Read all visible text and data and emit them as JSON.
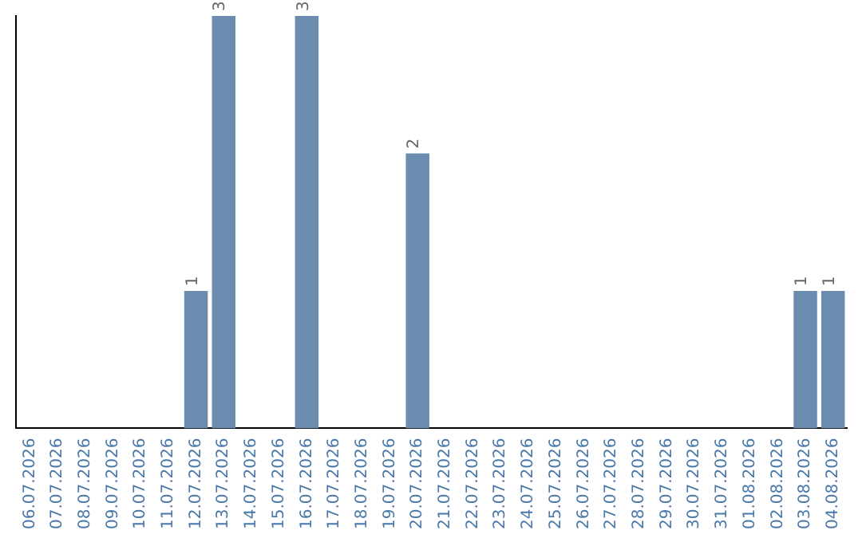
{
  "chart_data": {
    "type": "bar",
    "categories": [
      "06.07.2026",
      "07.07.2026",
      "08.07.2026",
      "09.07.2026",
      "10.07.2026",
      "11.07.2026",
      "12.07.2026",
      "13.07.2026",
      "14.07.2026",
      "15.07.2026",
      "16.07.2026",
      "17.07.2026",
      "18.07.2026",
      "19.07.2026",
      "20.07.2026",
      "21.07.2026",
      "22.07.2026",
      "23.07.2026",
      "24.07.2026",
      "25.07.2026",
      "26.07.2026",
      "27.07.2026",
      "28.07.2026",
      "29.07.2026",
      "30.07.2026",
      "31.07.2026",
      "01.08.2026",
      "02.08.2026",
      "03.08.2026",
      "04.08.2026"
    ],
    "values": [
      0,
      0,
      0,
      0,
      0,
      0,
      1,
      3,
      0,
      0,
      3,
      0,
      0,
      0,
      2,
      0,
      0,
      0,
      0,
      0,
      0,
      0,
      0,
      0,
      0,
      0,
      0,
      0,
      1,
      1
    ],
    "value_labels": [
      null,
      null,
      null,
      null,
      null,
      null,
      "1",
      "3",
      null,
      null,
      "3",
      null,
      null,
      null,
      "2",
      null,
      null,
      null,
      null,
      null,
      null,
      null,
      null,
      null,
      null,
      null,
      null,
      null,
      "1",
      "1"
    ],
    "color": "#6b8cae",
    "ylim": [
      0,
      3
    ],
    "tick_labels": "x",
    "grid": false,
    "legend": false
  }
}
